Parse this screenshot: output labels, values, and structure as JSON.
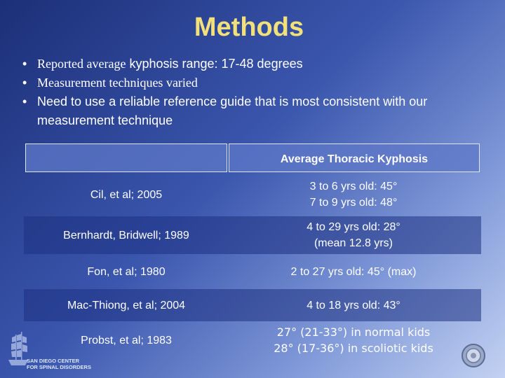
{
  "slide": {
    "title": "Methods",
    "bullets": [
      {
        "part1": "Reported average",
        "part2": " kyphosis range: 17-48 degrees"
      },
      {
        "part1": "Measurement techniques varied",
        "part2": ""
      },
      {
        "part1": "",
        "part2": "Need to use a reliable reference guide that is most consistent with our measurement technique"
      }
    ],
    "bullet_symbol": "•"
  },
  "table": {
    "header": {
      "left": "",
      "right": "Average Thoracic Kyphosis"
    },
    "rows": [
      {
        "study": "Cil, et al; 2005",
        "values": [
          "3 to 6 yrs old: 45°",
          "7 to 9 yrs old: 48°"
        ]
      },
      {
        "study": "Bernhardt, Bridwell; 1989",
        "values": [
          "4 to 29 yrs old: 28°",
          "(mean 12.8 yrs)"
        ]
      },
      {
        "study": "Fon, et al; 1980",
        "values": [
          "2 to 27 yrs old: 45° (max)"
        ]
      },
      {
        "study": "Mac-Thiong, et al; 2004",
        "values": [
          "4 to 18 yrs old: 43°"
        ]
      },
      {
        "study": "Probst, et al; 1983",
        "values": [
          "27° (21-33°) in normal kids",
          "28° (17-36°) in scoliotic kids"
        ]
      }
    ]
  },
  "logo": {
    "line1": "SAN DIEGO CENTER",
    "line2": "FOR SPINAL DISORDERS"
  },
  "colors": {
    "title": "#f2e07a",
    "text": "#ffffff",
    "background_start": "#1c2f78",
    "background_end": "#c3d2f2"
  },
  "icons": {
    "logo": "sailing-ship-logo-icon",
    "seal": "round-seal-icon"
  }
}
